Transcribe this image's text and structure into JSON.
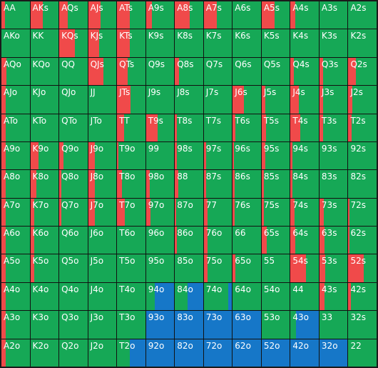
{
  "colors": {
    "green": "#16a856",
    "red": "#f04a4a",
    "blue": "#1677c8"
  },
  "grid": {
    "rows": [
      [
        {
          "hand": "AA",
          "red": 0.12,
          "blue": 0
        },
        {
          "hand": "AKs",
          "red": 0.45,
          "blue": 0
        },
        {
          "hand": "AQs",
          "red": 0.3,
          "blue": 0
        },
        {
          "hand": "AJs",
          "red": 0.45,
          "blue": 0
        },
        {
          "hand": "ATs",
          "red": 0.45,
          "blue": 0
        },
        {
          "hand": "A9s",
          "red": 0.22,
          "blue": 0
        },
        {
          "hand": "A8s",
          "red": 0.52,
          "blue": 0
        },
        {
          "hand": "A7s",
          "red": 0.45,
          "blue": 0
        },
        {
          "hand": "A6s",
          "red": 0,
          "blue": 0
        },
        {
          "hand": "A5s",
          "red": 0.45,
          "blue": 0
        },
        {
          "hand": "A4s",
          "red": 0.18,
          "blue": 0
        },
        {
          "hand": "A3s",
          "red": 0,
          "blue": 0
        },
        {
          "hand": "A2s",
          "red": 0,
          "blue": 0
        }
      ],
      [
        {
          "hand": "AKo",
          "red": 0,
          "blue": 0
        },
        {
          "hand": "KK",
          "red": 0,
          "blue": 0
        },
        {
          "hand": "KQs",
          "red": 0.55,
          "blue": 0
        },
        {
          "hand": "KJs",
          "red": 0.38,
          "blue": 0
        },
        {
          "hand": "KTs",
          "red": 0.45,
          "blue": 0
        },
        {
          "hand": "K9s",
          "red": 0,
          "blue": 0
        },
        {
          "hand": "K8s",
          "red": 0,
          "blue": 0
        },
        {
          "hand": "K7s",
          "red": 0,
          "blue": 0
        },
        {
          "hand": "K6s",
          "red": 0,
          "blue": 0
        },
        {
          "hand": "K5s",
          "red": 0,
          "blue": 0
        },
        {
          "hand": "K4s",
          "red": 0,
          "blue": 0
        },
        {
          "hand": "K3s",
          "red": 0,
          "blue": 0
        },
        {
          "hand": "K2s",
          "red": 0,
          "blue": 0
        }
      ],
      [
        {
          "hand": "AQo",
          "red": 0.18,
          "blue": 0
        },
        {
          "hand": "KQo",
          "red": 0,
          "blue": 0
        },
        {
          "hand": "QQ",
          "red": 0,
          "blue": 0
        },
        {
          "hand": "QJs",
          "red": 0.55,
          "blue": 0
        },
        {
          "hand": "QTs",
          "red": 0.38,
          "blue": 0
        },
        {
          "hand": "Q9s",
          "red": 0,
          "blue": 0
        },
        {
          "hand": "Q8s",
          "red": 0.14,
          "blue": 0
        },
        {
          "hand": "Q7s",
          "red": 0,
          "blue": 0
        },
        {
          "hand": "Q6s",
          "red": 0,
          "blue": 0
        },
        {
          "hand": "Q5s",
          "red": 0,
          "blue": 0
        },
        {
          "hand": "Q4s",
          "red": 0.12,
          "blue": 0
        },
        {
          "hand": "Q3s",
          "red": 0.14,
          "blue": 0
        },
        {
          "hand": "Q2s",
          "red": 0.26,
          "blue": 0
        }
      ],
      [
        {
          "hand": "AJo",
          "red": 0.14,
          "blue": 0
        },
        {
          "hand": "KJo",
          "red": 0,
          "blue": 0
        },
        {
          "hand": "QJo",
          "red": 0,
          "blue": 0
        },
        {
          "hand": "JJ",
          "red": 0,
          "blue": 0
        },
        {
          "hand": "JTs",
          "red": 0.48,
          "blue": 0
        },
        {
          "hand": "J9s",
          "red": 0,
          "blue": 0
        },
        {
          "hand": "J8s",
          "red": 0,
          "blue": 0
        },
        {
          "hand": "J7s",
          "red": 0,
          "blue": 0
        },
        {
          "hand": "J6s",
          "red": 0.4,
          "blue": 0
        },
        {
          "hand": "J5s",
          "red": 0.12,
          "blue": 0
        },
        {
          "hand": "J4s",
          "red": 0.3,
          "blue": 0
        },
        {
          "hand": "J3s",
          "red": 0.12,
          "blue": 0
        },
        {
          "hand": "J2s",
          "red": 0.14,
          "blue": 0
        }
      ],
      [
        {
          "hand": "ATo",
          "red": 0.14,
          "blue": 0
        },
        {
          "hand": "KTo",
          "red": 0,
          "blue": 0
        },
        {
          "hand": "QTo",
          "red": 0,
          "blue": 0
        },
        {
          "hand": "JTo",
          "red": 0,
          "blue": 0
        },
        {
          "hand": "TT",
          "red": 0.25,
          "blue": 0
        },
        {
          "hand": "T9s",
          "red": 0.4,
          "blue": 0
        },
        {
          "hand": "T8s",
          "red": 0.08,
          "blue": 0
        },
        {
          "hand": "T7s",
          "red": 0,
          "blue": 0
        },
        {
          "hand": "T6s",
          "red": 0.1,
          "blue": 0
        },
        {
          "hand": "T5s",
          "red": 0.15,
          "blue": 0
        },
        {
          "hand": "T4s",
          "red": 0.35,
          "blue": 0
        },
        {
          "hand": "T3s",
          "red": 0.12,
          "blue": 0
        },
        {
          "hand": "T2s",
          "red": 0.12,
          "blue": 0
        }
      ],
      [
        {
          "hand": "A9o",
          "red": 0.14,
          "blue": 0
        },
        {
          "hand": "K9o",
          "red": 0.28,
          "blue": 0
        },
        {
          "hand": "Q9o",
          "red": 0.15,
          "blue": 0
        },
        {
          "hand": "J9o",
          "red": 0.25,
          "blue": 0
        },
        {
          "hand": "T9o",
          "red": 0.05,
          "blue": 0
        },
        {
          "hand": "99",
          "red": 0,
          "blue": 0
        },
        {
          "hand": "98s",
          "red": 0.08,
          "blue": 0
        },
        {
          "hand": "97s",
          "red": 0.08,
          "blue": 0
        },
        {
          "hand": "96s",
          "red": 0.04,
          "blue": 0
        },
        {
          "hand": "95s",
          "red": 0.14,
          "blue": 0
        },
        {
          "hand": "94s",
          "red": 0.06,
          "blue": 0
        },
        {
          "hand": "93s",
          "red": 0,
          "blue": 0
        },
        {
          "hand": "92s",
          "red": 0,
          "blue": 0
        }
      ],
      [
        {
          "hand": "A8o",
          "red": 0.14,
          "blue": 0
        },
        {
          "hand": "K8o",
          "red": 0.22,
          "blue": 0
        },
        {
          "hand": "Q8o",
          "red": 0.08,
          "blue": 0
        },
        {
          "hand": "J8o",
          "red": 0.25,
          "blue": 0
        },
        {
          "hand": "T8o",
          "red": 0.18,
          "blue": 0
        },
        {
          "hand": "98o",
          "red": 0.14,
          "blue": 0
        },
        {
          "hand": "88",
          "red": 0.12,
          "blue": 0
        },
        {
          "hand": "87s",
          "red": 0.08,
          "blue": 0
        },
        {
          "hand": "86s",
          "red": 0.08,
          "blue": 0
        },
        {
          "hand": "85s",
          "red": 0.08,
          "blue": 0
        },
        {
          "hand": "84s",
          "red": 0.06,
          "blue": 0
        },
        {
          "hand": "83s",
          "red": 0,
          "blue": 0
        },
        {
          "hand": "82s",
          "red": 0,
          "blue": 0
        }
      ],
      [
        {
          "hand": "A7o",
          "red": 0.14,
          "blue": 0
        },
        {
          "hand": "K7o",
          "red": 0.14,
          "blue": 0
        },
        {
          "hand": "Q7o",
          "red": 0.08,
          "blue": 0
        },
        {
          "hand": "J7o",
          "red": 0.25,
          "blue": 0
        },
        {
          "hand": "T7o",
          "red": 0.28,
          "blue": 0
        },
        {
          "hand": "97o",
          "red": 0.15,
          "blue": 0
        },
        {
          "hand": "87o",
          "red": 0.05,
          "blue": 0
        },
        {
          "hand": "77",
          "red": 0.12,
          "blue": 0
        },
        {
          "hand": "76s",
          "red": 0.08,
          "blue": 0
        },
        {
          "hand": "75s",
          "red": 0.08,
          "blue": 0
        },
        {
          "hand": "74s",
          "red": 0.14,
          "blue": 0
        },
        {
          "hand": "73s",
          "red": 0.15,
          "blue": 0
        },
        {
          "hand": "72s",
          "red": 0.05,
          "blue": 0
        }
      ],
      [
        {
          "hand": "A6o",
          "red": 0.14,
          "blue": 0
        },
        {
          "hand": "K6o",
          "red": 0.14,
          "blue": 0
        },
        {
          "hand": "Q6o",
          "red": 0,
          "blue": 0
        },
        {
          "hand": "J6o",
          "red": 0,
          "blue": 0
        },
        {
          "hand": "T6o",
          "red": 0,
          "blue": 0
        },
        {
          "hand": "96o",
          "red": 0,
          "blue": 0
        },
        {
          "hand": "86o",
          "red": 0.06,
          "blue": 0
        },
        {
          "hand": "76o",
          "red": 0.14,
          "blue": 0
        },
        {
          "hand": "66",
          "red": 0,
          "blue": 0
        },
        {
          "hand": "65s",
          "red": 0.18,
          "blue": 0
        },
        {
          "hand": "64s",
          "red": 0.18,
          "blue": 0
        },
        {
          "hand": "63s",
          "red": 0.18,
          "blue": 0
        },
        {
          "hand": "62s",
          "red": 0.05,
          "blue": 0
        }
      ],
      [
        {
          "hand": "A5o",
          "red": 0.14,
          "blue": 0
        },
        {
          "hand": "K5o",
          "red": 0.14,
          "blue": 0
        },
        {
          "hand": "Q5o",
          "red": 0,
          "blue": 0
        },
        {
          "hand": "J5o",
          "red": 0,
          "blue": 0
        },
        {
          "hand": "T5o",
          "red": 0,
          "blue": 0
        },
        {
          "hand": "95o",
          "red": 0,
          "blue": 0
        },
        {
          "hand": "85o",
          "red": 0,
          "blue": 0
        },
        {
          "hand": "75o",
          "red": 0.14,
          "blue": 0
        },
        {
          "hand": "65o",
          "red": 0.1,
          "blue": 0
        },
        {
          "hand": "55",
          "red": 0,
          "blue": 0
        },
        {
          "hand": "54s",
          "red": 0.55,
          "blue": 0
        },
        {
          "hand": "53s",
          "red": 0.2,
          "blue": 0
        },
        {
          "hand": "52s",
          "red": 0.55,
          "blue": 0
        }
      ],
      [
        {
          "hand": "A4o",
          "red": 0.14,
          "blue": 0
        },
        {
          "hand": "K4o",
          "red": 0,
          "blue": 0
        },
        {
          "hand": "Q4o",
          "red": 0,
          "blue": 0
        },
        {
          "hand": "J4o",
          "red": 0,
          "blue": 0
        },
        {
          "hand": "T4o",
          "red": 0,
          "blue": 0
        },
        {
          "hand": "94o",
          "red": 0,
          "blue": 0.7
        },
        {
          "hand": "84o",
          "red": 0,
          "blue": 0.55
        },
        {
          "hand": "74o",
          "red": 0,
          "blue": 0.14
        },
        {
          "hand": "64o",
          "red": 0,
          "blue": 0
        },
        {
          "hand": "54o",
          "red": 0,
          "blue": 0
        },
        {
          "hand": "44",
          "red": 0,
          "blue": 0
        },
        {
          "hand": "43s",
          "red": 0.18,
          "blue": 0
        },
        {
          "hand": "42s",
          "red": 0.08,
          "blue": 0
        }
      ],
      [
        {
          "hand": "A3o",
          "red": 0.14,
          "blue": 0
        },
        {
          "hand": "K3o",
          "red": 0,
          "blue": 0
        },
        {
          "hand": "Q3o",
          "red": 0,
          "blue": 0
        },
        {
          "hand": "J3o",
          "red": 0,
          "blue": 0
        },
        {
          "hand": "T3o",
          "red": 0,
          "blue": 0
        },
        {
          "hand": "93o",
          "red": 0,
          "blue": 1
        },
        {
          "hand": "83o",
          "red": 0,
          "blue": 1
        },
        {
          "hand": "73o",
          "red": 0,
          "blue": 1
        },
        {
          "hand": "63o",
          "red": 0,
          "blue": 1
        },
        {
          "hand": "53o",
          "red": 0,
          "blue": 0
        },
        {
          "hand": "43o",
          "red": 0,
          "blue": 0.8
        },
        {
          "hand": "33",
          "red": 0,
          "blue": 0
        },
        {
          "hand": "32s",
          "red": 0,
          "blue": 0
        }
      ],
      [
        {
          "hand": "A2o",
          "red": 0.14,
          "blue": 0
        },
        {
          "hand": "K2o",
          "red": 0,
          "blue": 0
        },
        {
          "hand": "Q2o",
          "red": 0,
          "blue": 0
        },
        {
          "hand": "J2o",
          "red": 0,
          "blue": 0
        },
        {
          "hand": "T2o",
          "red": 0,
          "blue": 0.55
        },
        {
          "hand": "92o",
          "red": 0,
          "blue": 1
        },
        {
          "hand": "82o",
          "red": 0,
          "blue": 1
        },
        {
          "hand": "72o",
          "red": 0,
          "blue": 1
        },
        {
          "hand": "62o",
          "red": 0,
          "blue": 1
        },
        {
          "hand": "52o",
          "red": 0,
          "blue": 1
        },
        {
          "hand": "42o",
          "red": 0,
          "blue": 1
        },
        {
          "hand": "32o",
          "red": 0,
          "blue": 1
        },
        {
          "hand": "22",
          "red": 0,
          "blue": 0
        }
      ]
    ]
  }
}
